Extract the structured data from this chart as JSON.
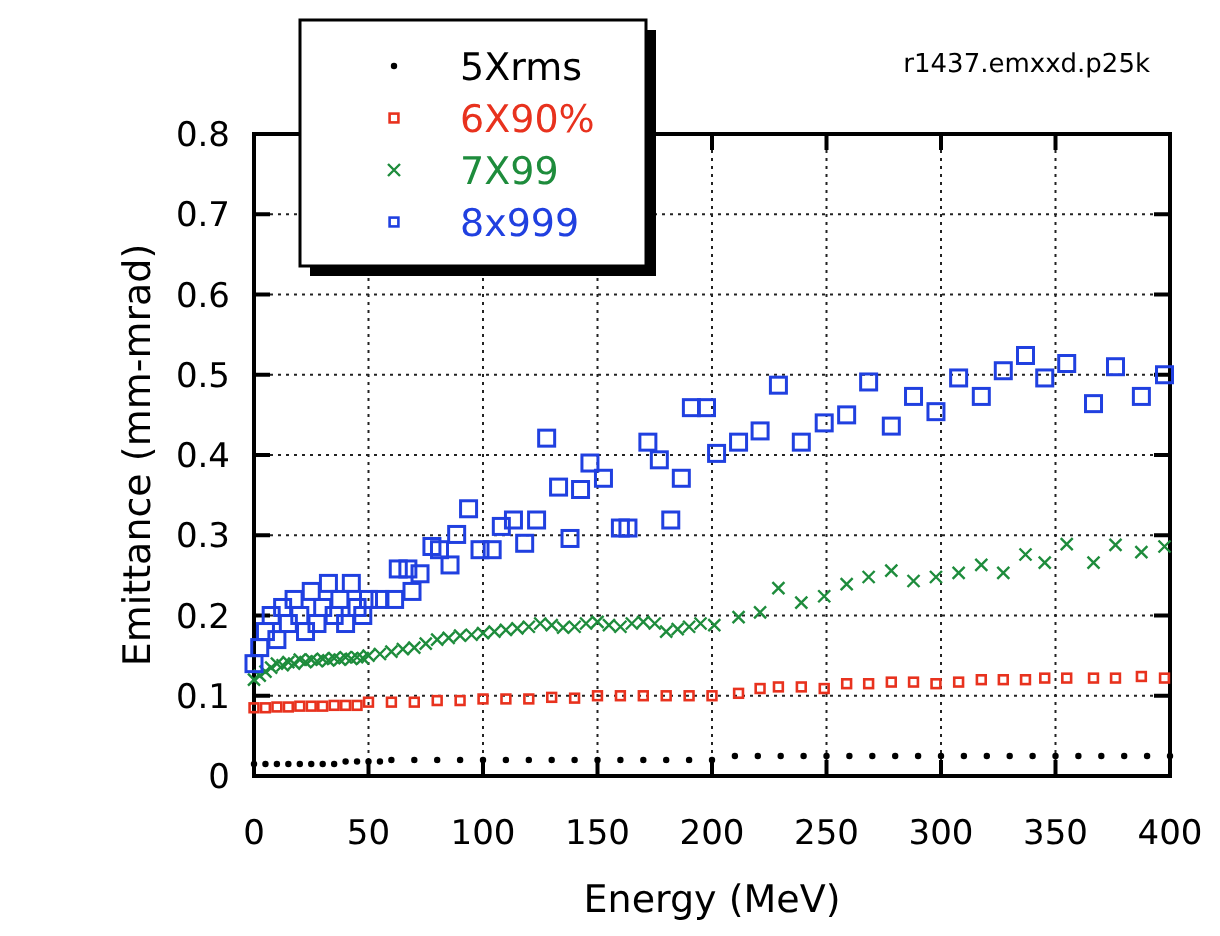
{
  "chart_data": {
    "type": "scatter",
    "xlabel": "Energy (MeV)",
    "ylabel": "Emittance (mm-mrad)",
    "annotations": [
      "r1437.emxxd.p25k"
    ],
    "xlim": [
      0,
      400
    ],
    "xticks": [
      0,
      50,
      100,
      150,
      200,
      250,
      300,
      350,
      400
    ],
    "ylim": [
      0,
      0.8
    ],
    "yticks": [
      0,
      0.1,
      0.2,
      0.3,
      0.4,
      0.5,
      0.6,
      0.7,
      0.8
    ],
    "grid": true,
    "legend": "top left",
    "series": [
      {
        "name": "5Xrms",
        "color": "#000000",
        "marker": "circle",
        "x": [
          0,
          5,
          10,
          15,
          20,
          25,
          30,
          35,
          40,
          45,
          50,
          55,
          60,
          70,
          80,
          90,
          100,
          110,
          120,
          130,
          140,
          150,
          160,
          170,
          180,
          190,
          200,
          210,
          220,
          230,
          240,
          250,
          260,
          270,
          280,
          290,
          300,
          310,
          320,
          330,
          340,
          350,
          360,
          370,
          380,
          390,
          400
        ],
        "values": [
          0.015,
          0.015,
          0.015,
          0.015,
          0.015,
          0.015,
          0.015,
          0.015,
          0.018,
          0.018,
          0.018,
          0.018,
          0.02,
          0.02,
          0.02,
          0.02,
          0.02,
          0.02,
          0.02,
          0.02,
          0.02,
          0.02,
          0.02,
          0.02,
          0.02,
          0.02,
          0.02,
          0.025,
          0.025,
          0.025,
          0.025,
          0.025,
          0.025,
          0.025,
          0.025,
          0.025,
          0.025,
          0.025,
          0.025,
          0.025,
          0.025,
          0.025,
          0.025,
          0.025,
          0.025,
          0.025,
          0.025
        ]
      },
      {
        "name": "6X90%",
        "color": "#e8321e",
        "marker": "square",
        "x": [
          0,
          5,
          10,
          15,
          20,
          25,
          30,
          35,
          40,
          45,
          50,
          60,
          70,
          80,
          90,
          100,
          110,
          120,
          130,
          140,
          150,
          160,
          170,
          180,
          190,
          200,
          211.6,
          221,
          229,
          239,
          249,
          258.8,
          268.4,
          278.3,
          288,
          297.8,
          307.7,
          317.6,
          327.2,
          336.9,
          345.3,
          354.9,
          366.6,
          376.2,
          387.5,
          397.6
        ],
        "values": [
          0.085,
          0.085,
          0.086,
          0.086,
          0.087,
          0.087,
          0.087,
          0.088,
          0.088,
          0.088,
          0.092,
          0.092,
          0.092,
          0.094,
          0.094,
          0.096,
          0.096,
          0.096,
          0.098,
          0.097,
          0.1,
          0.1,
          0.1,
          0.1,
          0.1,
          0.1,
          0.103,
          0.109,
          0.111,
          0.111,
          0.109,
          0.115,
          0.115,
          0.117,
          0.117,
          0.115,
          0.117,
          0.12,
          0.12,
          0.12,
          0.122,
          0.122,
          0.122,
          0.122,
          0.124,
          0.122
        ]
      },
      {
        "name": "7X99",
        "color": "#1e8c3c",
        "marker": "cross",
        "x": [
          0,
          2.5,
          5,
          7.5,
          10,
          12.5,
          15,
          17.5,
          20,
          22.5,
          25,
          27.5,
          30,
          32.5,
          35,
          37.5,
          40,
          42.5,
          45,
          47.5,
          50,
          55,
          60,
          65,
          70,
          75,
          80,
          85,
          90,
          95,
          100,
          105,
          110,
          115,
          120,
          125,
          130,
          135,
          140,
          145,
          150,
          155,
          160,
          165,
          170,
          175,
          180,
          185,
          190,
          195,
          201,
          211.6,
          221,
          229,
          239,
          249,
          258.8,
          268.4,
          278.3,
          288,
          297.8,
          307.7,
          317.6,
          327.2,
          336.9,
          345.3,
          354.9,
          366.6,
          376.2,
          387.5,
          397.6
        ],
        "values": [
          0.12,
          0.125,
          0.13,
          0.135,
          0.14,
          0.138,
          0.142,
          0.14,
          0.145,
          0.142,
          0.145,
          0.143,
          0.146,
          0.144,
          0.147,
          0.145,
          0.148,
          0.146,
          0.148,
          0.147,
          0.15,
          0.152,
          0.155,
          0.158,
          0.16,
          0.165,
          0.17,
          0.172,
          0.175,
          0.176,
          0.178,
          0.18,
          0.182,
          0.184,
          0.186,
          0.19,
          0.188,
          0.185,
          0.186,
          0.19,
          0.192,
          0.188,
          0.186,
          0.19,
          0.192,
          0.19,
          0.18,
          0.183,
          0.186,
          0.19,
          0.188,
          0.198,
          0.204,
          0.234,
          0.216,
          0.224,
          0.239,
          0.248,
          0.256,
          0.243,
          0.248,
          0.253,
          0.263,
          0.253,
          0.276,
          0.266,
          0.289,
          0.266,
          0.288,
          0.279,
          0.286
        ]
      },
      {
        "name": "8x999",
        "color": "#2040e0",
        "marker": "square",
        "x": [
          0,
          2.5,
          5,
          7.5,
          10,
          12.5,
          15,
          17.5,
          20,
          22.5,
          25,
          27.5,
          30,
          32.5,
          35,
          37.5,
          40,
          42.5,
          45,
          47.5,
          50,
          55,
          61.4,
          63,
          67.2,
          69,
          72.5,
          77.7,
          81,
          85.6,
          88.5,
          93.7,
          98.7,
          104,
          108,
          113.3,
          118.2,
          123.4,
          127.8,
          133,
          138,
          142.6,
          146.7,
          152.6,
          160,
          163.3,
          172,
          177,
          182,
          186.6,
          191,
          197.6,
          202,
          211.6,
          221,
          229,
          239,
          249,
          258.8,
          268.4,
          278.3,
          288,
          297.8,
          307.7,
          317.6,
          327.2,
          336.9,
          345.3,
          354.9,
          366.6,
          376.2,
          387.5,
          397.6
        ],
        "values": [
          0.14,
          0.16,
          0.18,
          0.2,
          0.17,
          0.21,
          0.19,
          0.22,
          0.2,
          0.18,
          0.23,
          0.19,
          0.21,
          0.24,
          0.2,
          0.22,
          0.19,
          0.24,
          0.21,
          0.2,
          0.22,
          0.22,
          0.22,
          0.258,
          0.258,
          0.23,
          0.252,
          0.286,
          0.282,
          0.263,
          0.301,
          0.333,
          0.282,
          0.282,
          0.311,
          0.319,
          0.29,
          0.319,
          0.421,
          0.36,
          0.296,
          0.357,
          0.39,
          0.371,
          0.309,
          0.309,
          0.416,
          0.394,
          0.319,
          0.371,
          0.459,
          0.459,
          0.402,
          0.416,
          0.43,
          0.487,
          0.416,
          0.44,
          0.45,
          0.491,
          0.436,
          0.473,
          0.454,
          0.496,
          0.473,
          0.505,
          0.524,
          0.496,
          0.514,
          0.464,
          0.51,
          0.473,
          0.5
        ]
      }
    ]
  }
}
